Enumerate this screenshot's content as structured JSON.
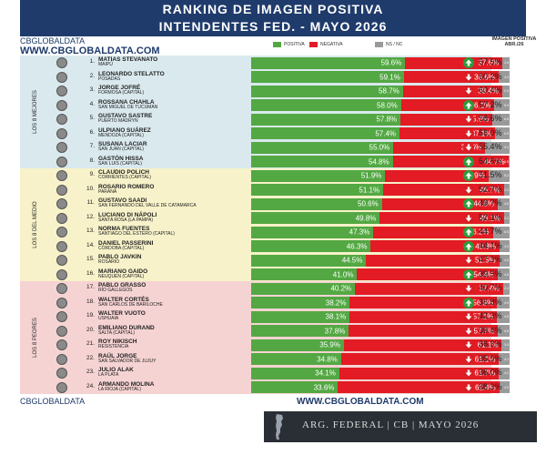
{
  "header": {
    "title1": "RANKING DE IMAGEN POSITIVA",
    "title2": "INTENDENTES FED. - MAYO 2026"
  },
  "brand": {
    "small": "CBGLOBALDATA",
    "url": "WWW.CBGLOBALDATA.COM"
  },
  "legend": {
    "positiva": "POSITIVA",
    "negativa": "NEGATIVA",
    "nsnc": "NS / NC"
  },
  "imagen_positiva_header": "IMAGEN POSITIVA ABR./26",
  "groups": [
    {
      "label": "LOS 8 MEJORES",
      "color": "#d9e9ee"
    },
    {
      "label": "LOS 8 DEL MEDIO",
      "color": "#f7f2c9"
    },
    {
      "label": "LOS 8 PEORES",
      "color": "#f6d3d3"
    }
  ],
  "colors": {
    "positiva": "#53a843",
    "negativa": "#e21b24",
    "nsnc": "#9a9a9a",
    "header_bg": "#1f3b6b"
  },
  "chart_data": {
    "type": "bar",
    "stacked": true,
    "orientation": "horizontal",
    "title": "RANKING DE IMAGEN POSITIVA",
    "subtitle": "INTENDENTES FED. - MAYO 2026",
    "legend": [
      "POSITIVA",
      "NEGATIVA",
      "NS / NC"
    ],
    "rows": [
      {
        "rank": "1.",
        "name": "MATIAS STEVANATO",
        "place": "MAIPÚ",
        "pos": 59.6,
        "pos_label": "59.6%",
        "neg": 37.6,
        "neg_label": "37.6%",
        "ns": 2.8,
        "ns_label": "2.8",
        "trend": "up",
        "prev": "57.5%"
      },
      {
        "rank": "2.",
        "name": "LEONARDO STELATTO",
        "place": "POSADAS",
        "pos": 59.1,
        "pos_label": "59.1%",
        "neg": 36.6,
        "neg_label": "36.6%",
        "ns": 4.3,
        "ns_label": "4.3",
        "trend": "down",
        "prev": "60.2%"
      },
      {
        "rank": "3.",
        "name": "JORGE JOFRÉ",
        "place": "FORMOSA (CAPITAL)",
        "pos": 58.7,
        "pos_label": "58.7%",
        "neg": 38.4,
        "neg_label": "38.4%",
        "ns": 2.9,
        "ns_label": "2.9",
        "trend": "down",
        "prev": "60.4%"
      },
      {
        "rank": "4.",
        "name": "ROSSANA CHAHLA",
        "place": "SAN MIGUEL DE TUCUMAN",
        "pos": 58.0,
        "pos_label": "58.0%",
        "neg": 36.1,
        "neg_label": "36.1%",
        "ns": 5.9,
        "ns_label": "5.9",
        "trend": "up",
        "prev": "57.2%"
      },
      {
        "rank": "5.",
        "name": "GUSTAVO SASTRE",
        "place": "PUERTO MADRYN",
        "pos": 57.8,
        "pos_label": "57.8%",
        "neg": 35.6,
        "neg_label": "35.6%",
        "ns": 6.6,
        "ns_label": "6.6",
        "trend": "down",
        "prev": "58.6%"
      },
      {
        "rank": "6.",
        "name": "ULPIANO SUÁREZ",
        "place": "MENDOZA (CAPITAL)",
        "pos": 57.4,
        "pos_label": "57.4%",
        "neg": 37.1,
        "neg_label": "37.1%",
        "ns": 5.5,
        "ns_label": "5.5",
        "trend": "down",
        "prev": "58.0%"
      },
      {
        "rank": "7.",
        "name": "SUSANA LACIAR",
        "place": "SAN JUAN (CAPITAL)",
        "pos": 55.0,
        "pos_label": "55.0%",
        "neg": 35.6,
        "neg_label": "35.6%",
        "ns": 9.4,
        "ns_label": "9.4",
        "trend": "down",
        "prev": "55.4%"
      },
      {
        "rank": "8.",
        "name": "GASTÓN HISSA",
        "place": "SAN LUIS (CAPITAL)",
        "pos": 54.8,
        "pos_label": "54.8%",
        "neg": 44.7,
        "neg_label": "44.7%",
        "ns": 0.5,
        "ns_label": "0.5",
        "trend": "up",
        "prev": "54.6%"
      },
      {
        "rank": "9.",
        "name": "CLAUDIO POLICH",
        "place": "CORRIENTES (CAPITAL)",
        "pos": 51.9,
        "pos_label": "51.9%",
        "neg": 39.9,
        "neg_label": "39.9%",
        "ns": 8.2,
        "ns_label": "8.2",
        "trend": "up",
        "prev": "51.5%"
      },
      {
        "rank": "10.",
        "name": "ROSARIO ROMERO",
        "place": "PARANÁ",
        "pos": 51.1,
        "pos_label": "51.1%",
        "neg": 46.7,
        "neg_label": "46.7%",
        "ns": 2.2,
        "ns_label": "2.2",
        "trend": "down",
        "prev": "52.7%"
      },
      {
        "rank": "11.",
        "name": "GUSTAVO SAADI",
        "place": "SAN FERNANDO DEL VALLE DE CATAMARCA",
        "pos": 50.6,
        "pos_label": "50.6%",
        "neg": 44.8,
        "neg_label": "44.8%",
        "ns": 4.6,
        "ns_label": "4.6",
        "trend": "up",
        "prev": "49.7%"
      },
      {
        "rank": "12.",
        "name": "LUCIANO DI NÁPOLI",
        "place": "SANTA ROSA (LA PAMPA)",
        "pos": 49.8,
        "pos_label": "49.8%",
        "neg": 48.1,
        "neg_label": "48.1%",
        "ns": 2.1,
        "ns_label": "2.1",
        "trend": "down",
        "prev": "52.1%"
      },
      {
        "rank": "13.",
        "name": "NORMA FUENTES",
        "place": "SANTIAGO DEL ESTERO (CAPITAL)",
        "pos": 47.3,
        "pos_label": "47.3%",
        "neg": 46.2,
        "neg_label": "46.2%",
        "ns": 6.5,
        "ns_label": "6.5",
        "trend": "up",
        "prev": "44.7%"
      },
      {
        "rank": "14.",
        "name": "DANIEL PASSERINI",
        "place": "CÓRDOBA (CAPITAL)",
        "pos": 46.3,
        "pos_label": "46.3%",
        "neg": 49.8,
        "neg_label": "49.8%",
        "ns": 3.9,
        "ns_label": "3.9",
        "trend": "up",
        "prev": "44.1%"
      },
      {
        "rank": "15.",
        "name": "PABLO JAVKIN",
        "place": "ROSARIO",
        "pos": 44.5,
        "pos_label": "44.5%",
        "neg": 51.5,
        "neg_label": "51.5%",
        "ns": 4.0,
        "ns_label": "4.0",
        "trend": "down",
        "prev": "47.3%"
      },
      {
        "rank": "16.",
        "name": "MARIANO GAIDO",
        "place": "NEUQUÉN (CAPITAL)",
        "pos": 41.0,
        "pos_label": "41.0%",
        "neg": 54.4,
        "neg_label": "54.4%",
        "ns": 4.6,
        "ns_label": "4.6",
        "trend": "up",
        "prev": "39.5%"
      },
      {
        "rank": "17.",
        "name": "PABLO GRASSO",
        "place": "RÍO GALLEGOS",
        "pos": 40.2,
        "pos_label": "40.2%",
        "neg": 57.4,
        "neg_label": "57.4%",
        "ns": 2.4,
        "ns_label": "2.4",
        "trend": "down",
        "prev": "40.7%"
      },
      {
        "rank": "18.",
        "name": "WALTER CORTÉS",
        "place": "SAN CARLOS DE BARILOCHE",
        "pos": 38.2,
        "pos_label": "38.2%",
        "neg": 56.9,
        "neg_label": "56.9%",
        "ns": 4.9,
        "ns_label": "4.9",
        "trend": "up",
        "prev": "36.8%"
      },
      {
        "rank": "19.",
        "name": "WALTER VUOTO",
        "place": "USHUAIA",
        "pos": 38.1,
        "pos_label": "38.1%",
        "neg": 57.1,
        "neg_label": "57.1%",
        "ns": 4.8,
        "ns_label": "4.8",
        "trend": "down",
        "prev": "42.3%"
      },
      {
        "rank": "20.",
        "name": "EMILIANO DURAND",
        "place": "SALTA (CAPITAL)",
        "pos": 37.8,
        "pos_label": "37.8%",
        "neg": 57.7,
        "neg_label": "57.7%",
        "ns": 4.5,
        "ns_label": "4.5",
        "trend": "down",
        "prev": "39.4%"
      },
      {
        "rank": "21.",
        "name": "ROY NIKISCH",
        "place": "RESISTENCIA",
        "pos": 35.9,
        "pos_label": "35.9%",
        "neg": 61.1,
        "neg_label": "61.1%",
        "ns": 3.0,
        "ns_label": "3.0",
        "trend": "down",
        "prev": "36.3%"
      },
      {
        "rank": "22.",
        "name": "RAÚL JORGE",
        "place": "SAN SALVADOR DE JUJUY",
        "pos": 34.8,
        "pos_label": "34.8%",
        "neg": 61.1,
        "neg_label": "61.1%",
        "ns": 4.1,
        "ns_label": "4.1",
        "trend": "down",
        "prev": "35.9%"
      },
      {
        "rank": "23.",
        "name": "JULIO ALAK",
        "place": "LA PLATA",
        "pos": 34.1,
        "pos_label": "34.1%",
        "neg": 61.7,
        "neg_label": "61.7%",
        "ns": 4.2,
        "ns_label": "4.2",
        "trend": "down",
        "prev": "36.0%"
      },
      {
        "rank": "24.",
        "name": "ARMANDO MOLINA",
        "place": "LA RIOJA (CAPITAL)",
        "pos": 33.6,
        "pos_label": "33.6%",
        "neg": 62.4,
        "neg_label": "62.4%",
        "ns": 4.0,
        "ns_label": "4.0",
        "trend": "down",
        "prev": "38.3%"
      }
    ]
  },
  "footer": {
    "left": "CBGLOBALDATA",
    "right": "WWW.CBGLOBALDATA.COM",
    "bottom": "ARG. FEDERAL | CB | MAYO 2026"
  }
}
